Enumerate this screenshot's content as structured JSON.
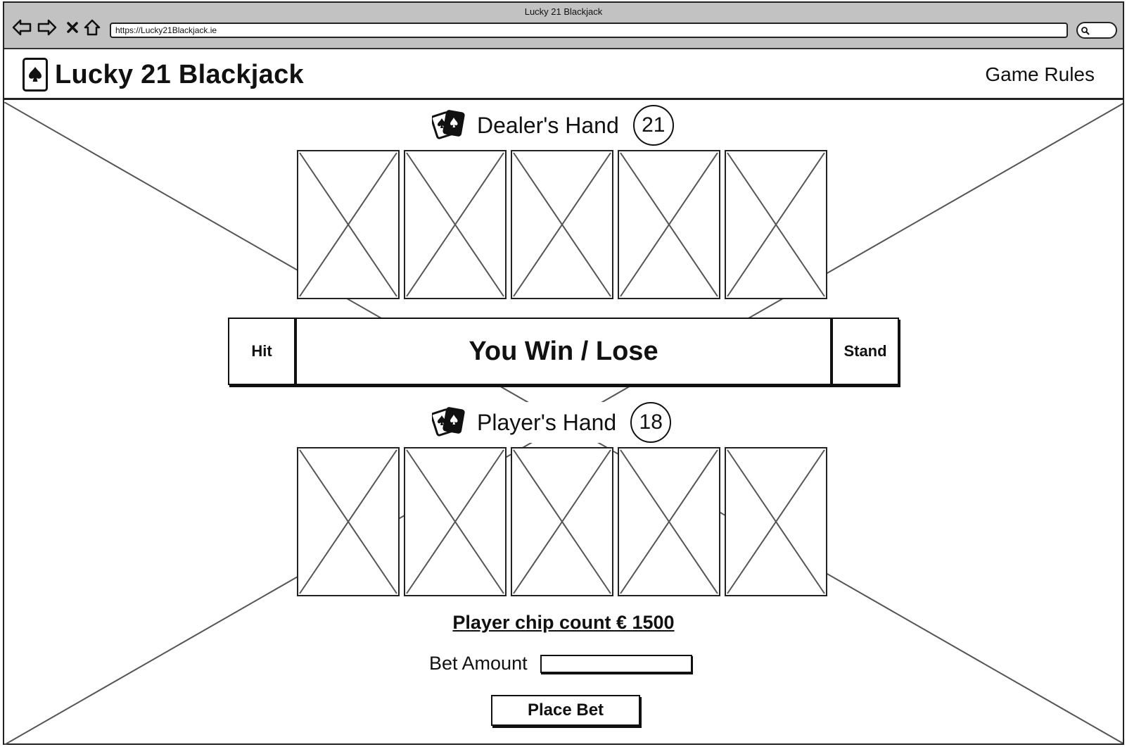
{
  "window": {
    "title": "Lucky 21 Blackjack",
    "url": "https://Lucky21Blackjack.ie"
  },
  "header": {
    "brand": "Lucky 21 Blackjack",
    "brand_icon": "spade-card-icon",
    "nav_link": "Game Rules"
  },
  "dealer": {
    "title": "Dealer's Hand",
    "score": "21",
    "icon": "playing-cards-icon",
    "card_count": 5
  },
  "player": {
    "title": "Player's Hand",
    "score": "18",
    "icon": "playing-cards-icon",
    "card_count": 5
  },
  "actions": {
    "hit": "Hit",
    "stand": "Stand",
    "result": "You Win / Lose"
  },
  "betting": {
    "chip_count": "Player chip count € 1500",
    "bet_label": "Bet Amount",
    "bet_value": "",
    "place_bet": "Place Bet"
  }
}
